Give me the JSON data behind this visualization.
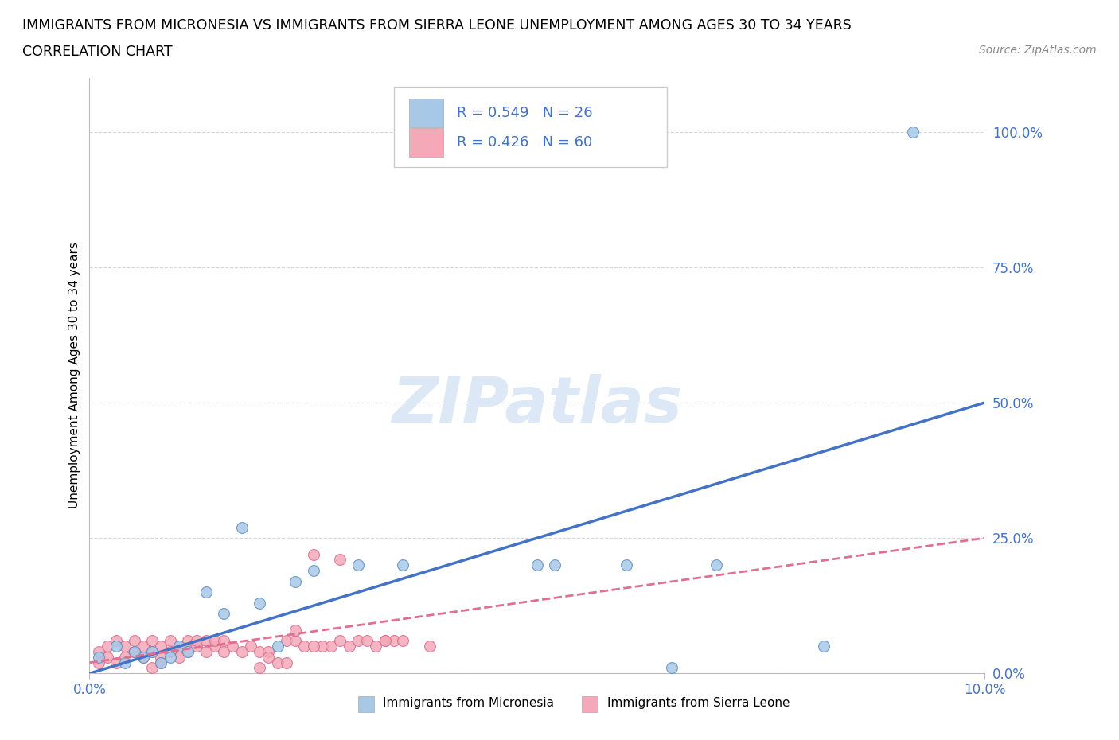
{
  "title_line1": "IMMIGRANTS FROM MICRONESIA VS IMMIGRANTS FROM SIERRA LEONE UNEMPLOYMENT AMONG AGES 30 TO 34 YEARS",
  "title_line2": "CORRELATION CHART",
  "source": "Source: ZipAtlas.com",
  "ylabel": "Unemployment Among Ages 30 to 34 years",
  "xlim": [
    0.0,
    0.1
  ],
  "ylim": [
    0.0,
    1.1
  ],
  "yticks": [
    0.0,
    0.25,
    0.5,
    0.75,
    1.0
  ],
  "ytick_labels": [
    "0.0%",
    "25.0%",
    "50.0%",
    "75.0%",
    "100.0%"
  ],
  "xticks": [
    0.0,
    0.1
  ],
  "xtick_labels": [
    "0.0%",
    "10.0%"
  ],
  "legend_label1": "Immigrants from Micronesia",
  "legend_label2": "Immigrants from Sierra Leone",
  "R1": 0.549,
  "N1": 26,
  "R2": 0.426,
  "N2": 60,
  "color_blue": "#a8c8e8",
  "color_pink": "#f4a8b8",
  "color_blue_line": "#4472c4",
  "color_pink_line": "#e07090",
  "color_blue_text": "#4472c4",
  "color_axis_text": "#4472c4",
  "watermark_color": "#dce8f5",
  "mic_x": [
    0.001,
    0.003,
    0.004,
    0.005,
    0.006,
    0.007,
    0.008,
    0.009,
    0.01,
    0.011,
    0.013,
    0.015,
    0.017,
    0.019,
    0.021,
    0.023,
    0.025,
    0.03,
    0.035,
    0.05,
    0.052,
    0.06,
    0.065,
    0.07,
    0.082,
    0.092
  ],
  "mic_y": [
    0.03,
    0.05,
    0.02,
    0.04,
    0.03,
    0.04,
    0.02,
    0.03,
    0.05,
    0.04,
    0.15,
    0.11,
    0.27,
    0.13,
    0.05,
    0.17,
    0.19,
    0.2,
    0.2,
    0.2,
    0.2,
    0.2,
    0.01,
    0.2,
    0.05,
    1.0
  ],
  "sl_x": [
    0.001,
    0.001,
    0.002,
    0.002,
    0.003,
    0.003,
    0.004,
    0.004,
    0.005,
    0.005,
    0.006,
    0.006,
    0.007,
    0.007,
    0.008,
    0.008,
    0.009,
    0.009,
    0.01,
    0.01,
    0.011,
    0.011,
    0.012,
    0.012,
    0.013,
    0.013,
    0.014,
    0.014,
    0.015,
    0.015,
    0.016,
    0.017,
    0.018,
    0.019,
    0.02,
    0.021,
    0.022,
    0.023,
    0.024,
    0.025,
    0.026,
    0.027,
    0.028,
    0.029,
    0.03,
    0.031,
    0.032,
    0.033,
    0.034,
    0.035,
    0.02,
    0.025,
    0.023,
    0.033,
    0.019,
    0.028,
    0.022,
    0.038,
    0.007,
    0.008
  ],
  "sl_y": [
    0.02,
    0.04,
    0.03,
    0.05,
    0.02,
    0.06,
    0.03,
    0.05,
    0.04,
    0.06,
    0.03,
    0.05,
    0.04,
    0.06,
    0.03,
    0.05,
    0.04,
    0.06,
    0.03,
    0.05,
    0.04,
    0.06,
    0.05,
    0.06,
    0.04,
    0.06,
    0.05,
    0.06,
    0.04,
    0.06,
    0.05,
    0.04,
    0.05,
    0.04,
    0.04,
    0.02,
    0.06,
    0.06,
    0.05,
    0.22,
    0.05,
    0.05,
    0.21,
    0.05,
    0.06,
    0.06,
    0.05,
    0.06,
    0.06,
    0.06,
    0.03,
    0.05,
    0.08,
    0.06,
    0.01,
    0.06,
    0.02,
    0.05,
    0.01,
    0.02
  ]
}
